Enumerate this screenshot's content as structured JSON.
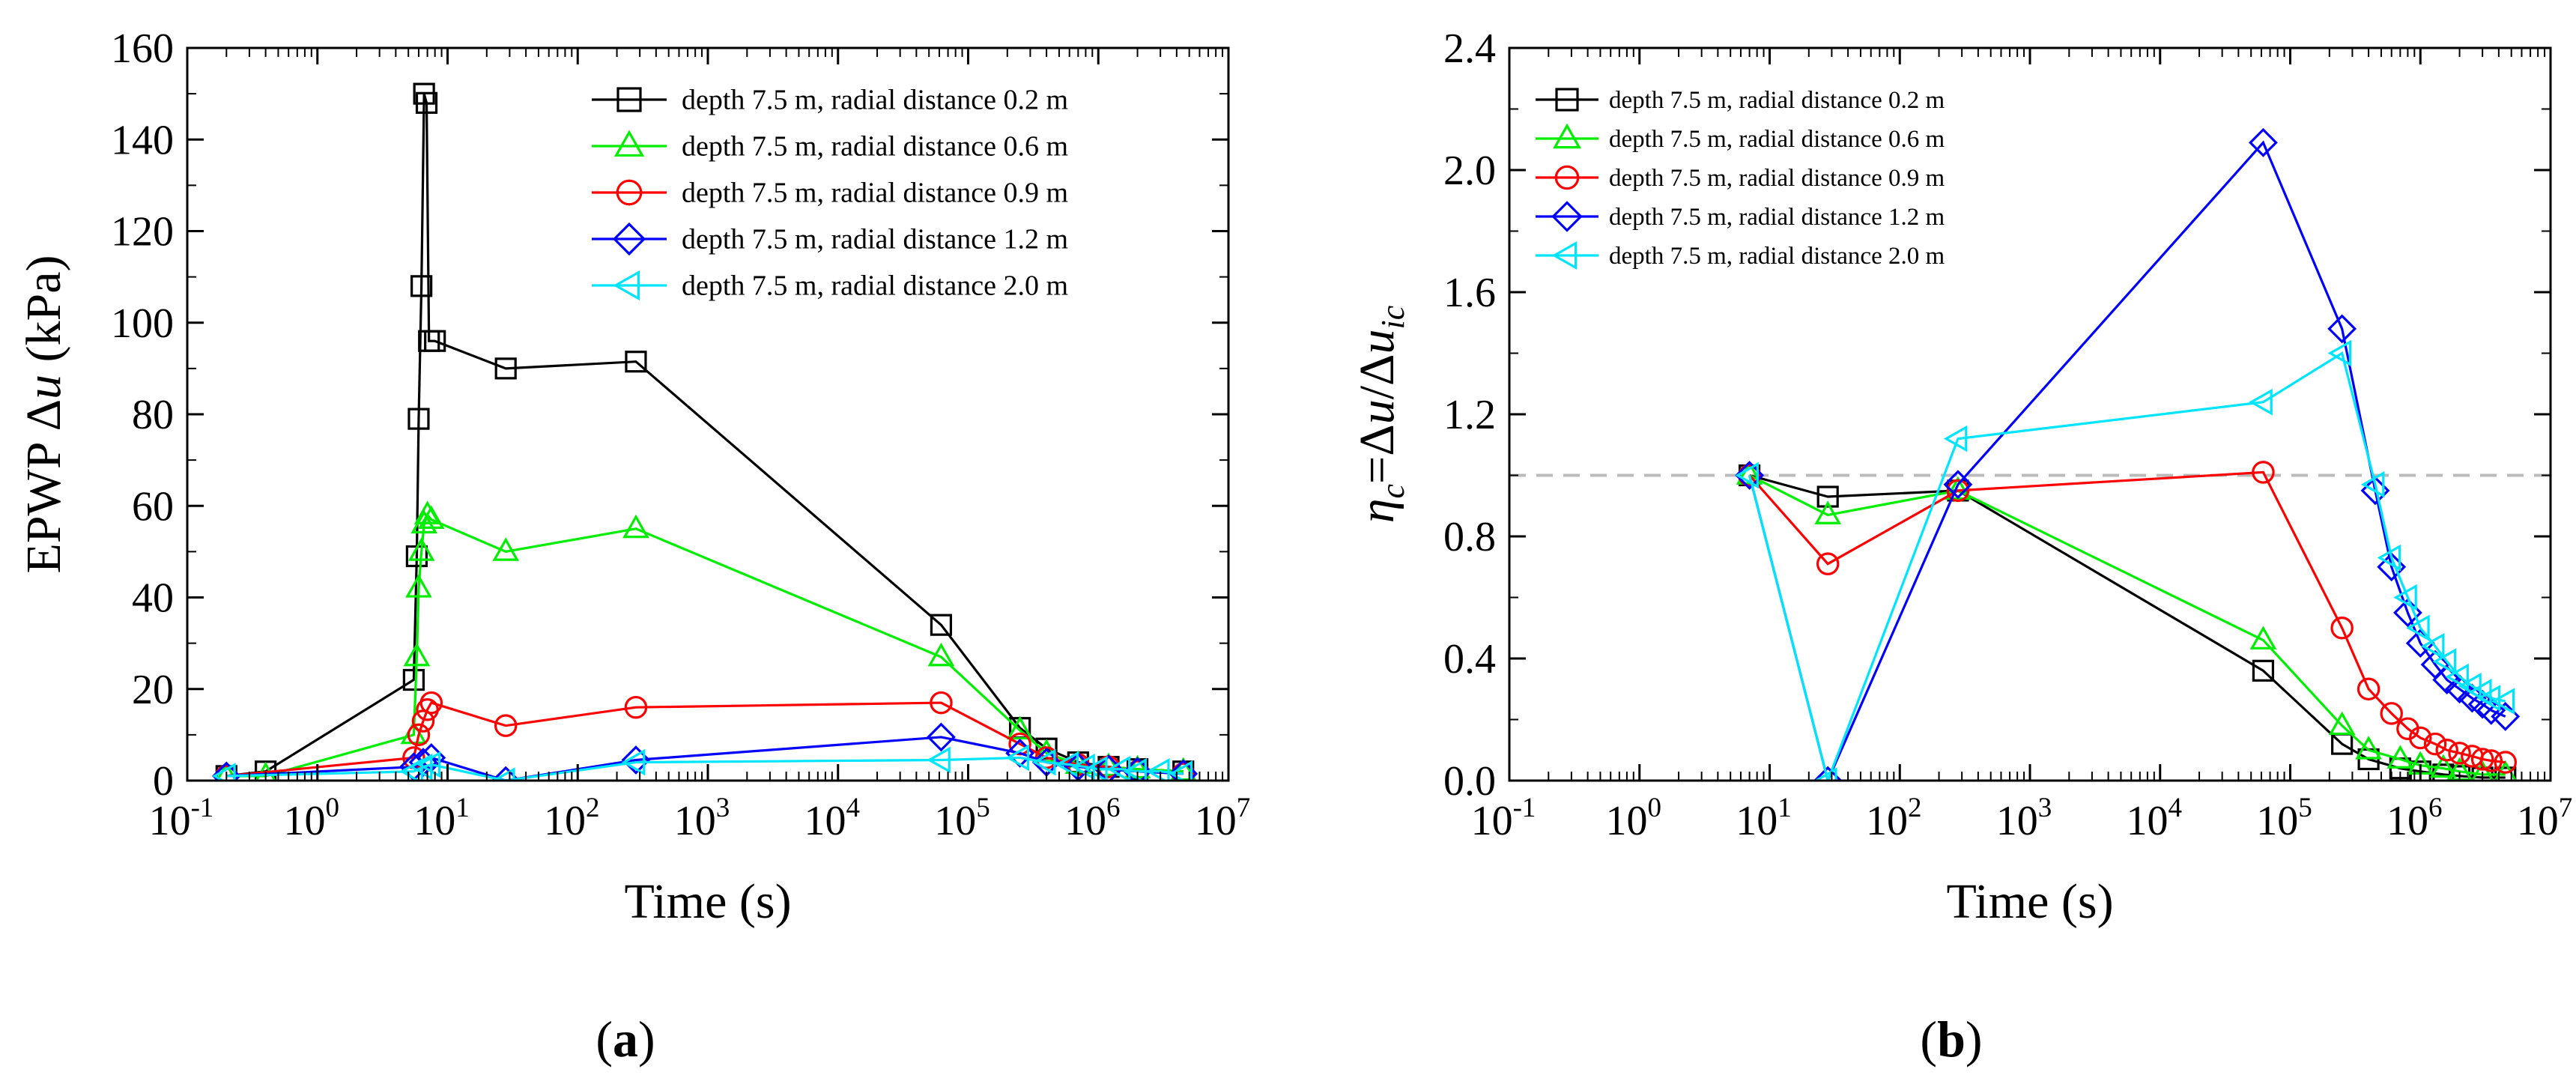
{
  "panels": [
    {
      "id": "a",
      "panel_label": "a",
      "ylabel_prefix": "EPWP Δ",
      "ylabel_var": "u",
      "ylabel_suffix": " (kPa)",
      "xlabel": "Time (s)",
      "y_tick_labels": [
        "0",
        "20",
        "40",
        "60",
        "80",
        "100",
        "120",
        "140",
        "160"
      ],
      "x_tick_exponents": [
        "-1",
        "0",
        "1",
        "2",
        "3",
        "4",
        "5",
        "6",
        "7"
      ]
    },
    {
      "id": "b",
      "panel_label": "b",
      "ylabel_prefix": "η",
      "ylabel_sub": "c",
      "ylabel_mid": "=Δ",
      "ylabel_var": "u",
      "ylabel_slash": "/Δ",
      "ylabel_var2": "u",
      "ylabel_sub2": "ic",
      "xlabel": "Time (s)",
      "y_tick_labels": [
        "0.0",
        "0.4",
        "0.8",
        "1.2",
        "1.6",
        "2.0",
        "2.4"
      ],
      "x_tick_exponents": [
        "-1",
        "0",
        "1",
        "2",
        "3",
        "4",
        "5",
        "6",
        "7"
      ]
    }
  ],
  "chart_data": [
    {
      "type": "line",
      "xscale": "log",
      "xlim": [
        0.1,
        10000000
      ],
      "ylim": [
        0,
        160
      ],
      "xlabel": "Time (s)",
      "ylabel": "EPWP Δu (kPa)",
      "legend_position": "top-right",
      "series": [
        {
          "name": "depth 7.5 m, radial distance 0.2 m",
          "color": "#000000",
          "marker": "square",
          "x": [
            0.2,
            0.4,
            5.5,
            5.8,
            6.0,
            6.3,
            6.6,
            6.9,
            7.2,
            8.0,
            28,
            280,
            62000,
            250000,
            400000,
            700000,
            1200000,
            2000000,
            4500000
          ],
          "y": [
            1,
            2,
            22,
            49,
            79,
            108,
            150,
            148,
            96,
            96,
            90,
            91.5,
            34,
            11.5,
            7,
            4,
            3,
            2.5,
            2
          ]
        },
        {
          "name": "depth 7.5 m, radial distance 0.6 m",
          "color": "#00ee00",
          "marker": "triangle-up",
          "x": [
            0.2,
            0.4,
            5.5,
            5.8,
            6.0,
            6.3,
            6.6,
            7.0,
            7.5,
            28,
            280,
            62000,
            250000,
            400000,
            700000,
            1200000,
            2000000,
            4500000
          ],
          "y": [
            1,
            1,
            10,
            27,
            42,
            50,
            56,
            58,
            57,
            50,
            55,
            27,
            11,
            6,
            3.5,
            3,
            2.5,
            2
          ]
        },
        {
          "name": "depth 7.5 m, radial distance 0.9 m",
          "color": "#ff0000",
          "marker": "circle",
          "x": [
            0.2,
            5.5,
            6.0,
            6.5,
            7.0,
            7.5,
            28,
            280,
            62000,
            250000,
            400000,
            700000,
            1200000,
            2000000,
            4500000
          ],
          "y": [
            1,
            5,
            10,
            13,
            15.5,
            17,
            12,
            16,
            17,
            8,
            5,
            3.5,
            3,
            2,
            1.5
          ]
        },
        {
          "name": "depth 7.5 m, radial distance 1.2 m",
          "color": "#0000ff",
          "marker": "diamond",
          "x": [
            0.2,
            5.5,
            6.5,
            7.5,
            28,
            280,
            62000,
            250000,
            400000,
            700000,
            1200000,
            2000000,
            4500000
          ],
          "y": [
            1,
            3,
            4,
            5,
            0,
            4.5,
            9.5,
            6,
            4,
            3,
            2.5,
            2,
            1.5
          ]
        },
        {
          "name": "depth 7.5 m, radial distance 2.0 m",
          "color": "#00e5ff",
          "marker": "triangle-left",
          "x": [
            0.2,
            5.5,
            6.5,
            7.5,
            28,
            280,
            62000,
            250000,
            400000,
            600000,
            800000,
            1000000,
            1500000,
            2000000,
            3000000,
            4500000
          ],
          "y": [
            1,
            2,
            3,
            3.5,
            0,
            4,
            4.5,
            5,
            4,
            3.5,
            3,
            2.5,
            2.5,
            2,
            2,
            1.5
          ]
        }
      ]
    },
    {
      "type": "line",
      "xscale": "log",
      "xlim": [
        0.1,
        10000000
      ],
      "ylim": [
        0,
        2.4
      ],
      "xlabel": "Time (s)",
      "ylabel": "ηc=Δu/Δuic",
      "reference_line": {
        "y": 1.0,
        "style": "dashed",
        "color": "#bbbbbb"
      },
      "legend_position": "top-left",
      "series": [
        {
          "name": "depth 7.5 m, radial distance 0.2 m",
          "color": "#000000",
          "marker": "square",
          "x": [
            7,
            28,
            280,
            62000,
            250000,
            400000,
            700000,
            1000000,
            1500000,
            2000000,
            3000000,
            4500000
          ],
          "y": [
            1.0,
            0.93,
            0.95,
            0.36,
            0.12,
            0.07,
            0.04,
            0.03,
            0.02,
            0.015,
            0.01,
            0.01
          ]
        },
        {
          "name": "depth 7.5 m, radial distance 0.6 m",
          "color": "#00ee00",
          "marker": "triangle-up",
          "x": [
            7,
            28,
            280,
            62000,
            250000,
            400000,
            700000,
            1000000,
            1500000,
            2000000,
            3000000,
            4500000
          ],
          "y": [
            1.0,
            0.87,
            0.95,
            0.46,
            0.18,
            0.1,
            0.07,
            0.05,
            0.04,
            0.03,
            0.02,
            0.02
          ]
        },
        {
          "name": "depth 7.5 m, radial distance 0.9 m",
          "color": "#ff0000",
          "marker": "circle",
          "x": [
            7,
            28,
            280,
            62000,
            250000,
            400000,
            600000,
            800000,
            1000000,
            1300000,
            1600000,
            2000000,
            2500000,
            3000000,
            3500000,
            4500000
          ],
          "y": [
            1.0,
            0.71,
            0.95,
            1.01,
            0.5,
            0.3,
            0.22,
            0.17,
            0.14,
            0.12,
            0.1,
            0.09,
            0.08,
            0.07,
            0.065,
            0.06
          ]
        },
        {
          "name": "depth 7.5 m, radial distance 1.2 m",
          "color": "#0000ff",
          "marker": "diamond",
          "x": [
            7,
            28,
            280,
            62000,
            250000,
            450000,
            600000,
            800000,
            1000000,
            1300000,
            1600000,
            2000000,
            2500000,
            3000000,
            3500000,
            4500000
          ],
          "y": [
            1.0,
            0.0,
            0.97,
            2.09,
            1.48,
            0.95,
            0.7,
            0.55,
            0.45,
            0.38,
            0.33,
            0.3,
            0.27,
            0.25,
            0.23,
            0.21
          ]
        },
        {
          "name": "depth 7.5 m, radial distance 2.0 m",
          "color": "#00e5ff",
          "marker": "triangle-left",
          "x": [
            7,
            28,
            280,
            62000,
            250000,
            450000,
            600000,
            800000,
            1000000,
            1300000,
            1600000,
            2000000,
            2500000,
            3000000,
            3500000,
            4500000
          ],
          "y": [
            1.0,
            0.0,
            1.12,
            1.24,
            1.4,
            0.97,
            0.73,
            0.6,
            0.5,
            0.44,
            0.39,
            0.34,
            0.31,
            0.29,
            0.27,
            0.26
          ]
        }
      ]
    }
  ]
}
